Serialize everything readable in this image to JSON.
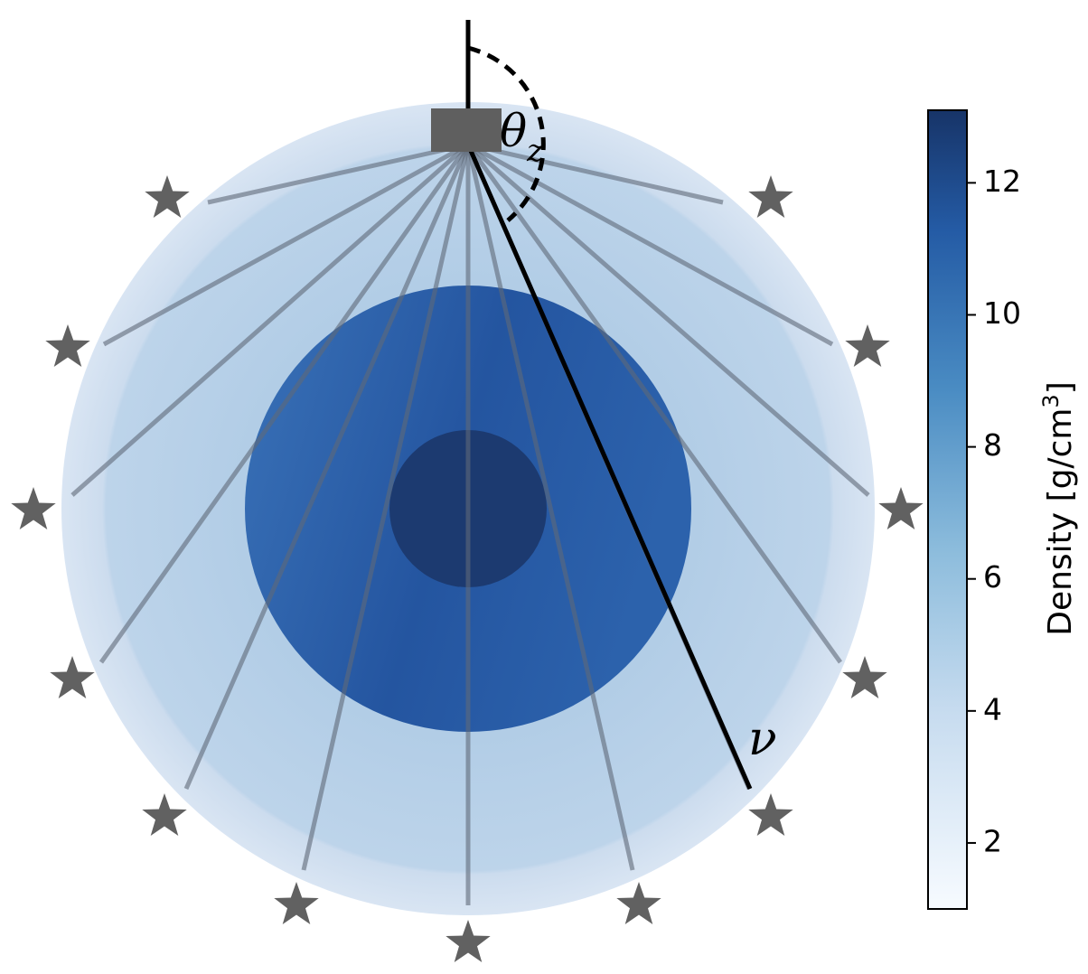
{
  "colorbar": {
    "label": "Density [g/cm",
    "label_superscript": "3",
    "label_end": "]",
    "lim": [
      1,
      13.1
    ],
    "ticks": [
      2,
      4,
      6,
      8,
      10,
      12
    ]
  },
  "labels": {
    "angle": "θ",
    "angle_subscript": "z",
    "neutrino": "ν"
  }
}
